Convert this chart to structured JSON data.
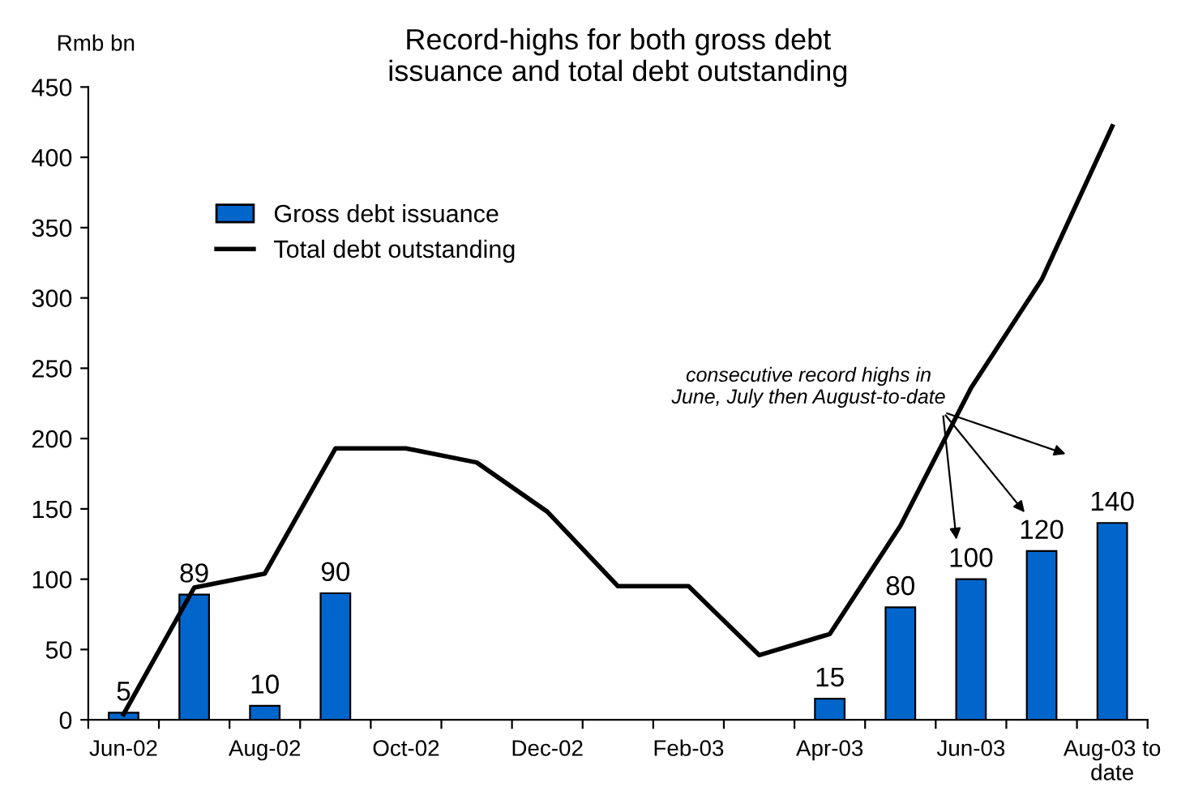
{
  "chart_data": {
    "type": "bar",
    "title": "Record-highs for both gross debt\nissuance and total debt outstanding",
    "ylabel": "Rmb bn",
    "categories": [
      "Jun-02",
      null,
      "Aug-02",
      null,
      "Oct-02",
      null,
      "Dec-02",
      null,
      "Feb-03",
      null,
      "Apr-03",
      null,
      "Jun-03",
      null,
      "Aug-03 to\ndate"
    ],
    "series": [
      {
        "name": "Gross debt issuance",
        "color": "#0066cc",
        "values": [
          5,
          89,
          10,
          90,
          null,
          null,
          null,
          null,
          null,
          null,
          15,
          80,
          100,
          120,
          140
        ],
        "value_labels": [
          "5",
          "89",
          "10",
          "90",
          null,
          null,
          null,
          null,
          null,
          null,
          "15",
          "80",
          "100",
          "120",
          "140"
        ]
      },
      {
        "name": "Total debt outstanding",
        "type": "line",
        "color": "#000000",
        "values": [
          4,
          94,
          104,
          193,
          193,
          183,
          148,
          95,
          95,
          46,
          61,
          138,
          236,
          313,
          422
        ]
      }
    ],
    "ylim": [
      0,
      450
    ],
    "yticks": [
      0,
      50,
      100,
      150,
      200,
      250,
      300,
      350,
      400,
      450
    ],
    "grid": false,
    "legend": "top left",
    "marker": "none",
    "line_style": "solid",
    "annotations": [
      "consecutive record highs in\nJune, July then August-to-date"
    ]
  }
}
